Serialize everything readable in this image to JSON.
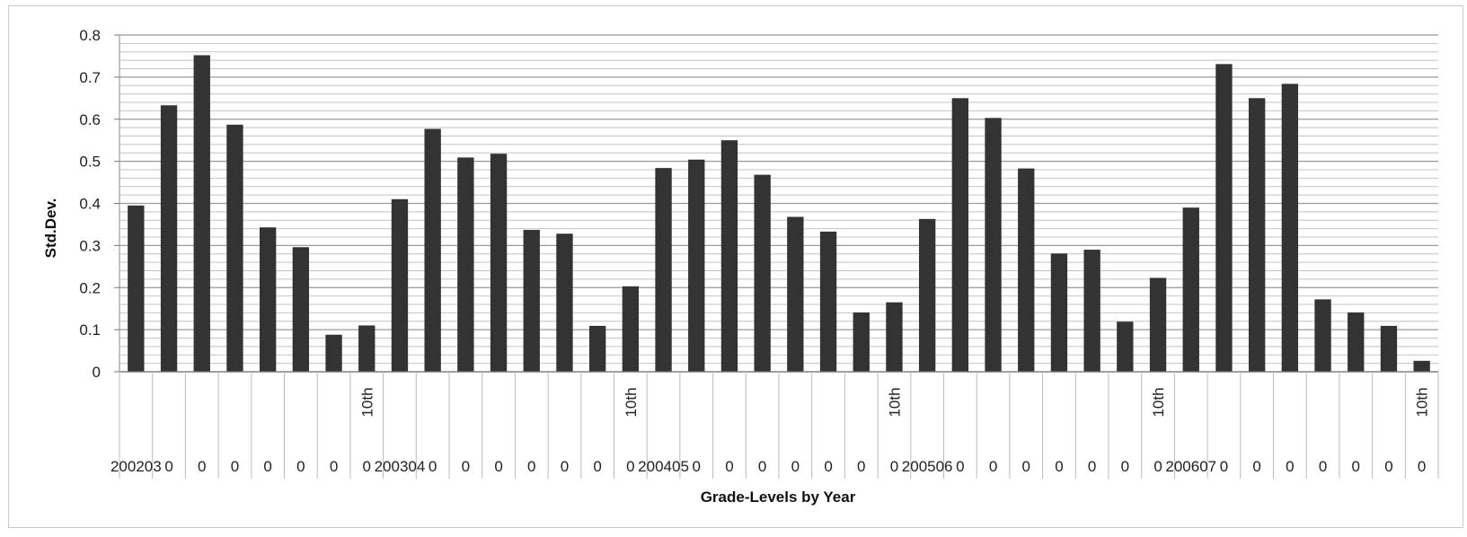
{
  "chart_data": {
    "type": "bar",
    "xlabel": "Grade-Levels by Year",
    "ylabel": "Std.Dev.",
    "ylim": [
      0,
      0.8
    ],
    "y_ticks": [
      "0",
      "0.1",
      "0.2",
      "0.3",
      "0.4",
      "0.5",
      "0.6",
      "0.7",
      "0.8"
    ],
    "grid": true,
    "legend": "none",
    "bar_color": "#333333",
    "grade_label_text": "10th",
    "year_labels": [
      "200203",
      "200304",
      "200405",
      "200506",
      "200607"
    ],
    "inner_tick_label": "0",
    "values": [
      0.395,
      0.633,
      0.752,
      0.587,
      0.343,
      0.296,
      0.088,
      0.11,
      0.41,
      0.577,
      0.509,
      0.518,
      0.337,
      0.328,
      0.109,
      0.203,
      0.484,
      0.504,
      0.55,
      0.468,
      0.368,
      0.333,
      0.141,
      0.165,
      0.363,
      0.65,
      0.603,
      0.483,
      0.281,
      0.29,
      0.119,
      0.223,
      0.39,
      0.731,
      0.65,
      0.684,
      0.172,
      0.141,
      0.109,
      0.026
    ]
  }
}
